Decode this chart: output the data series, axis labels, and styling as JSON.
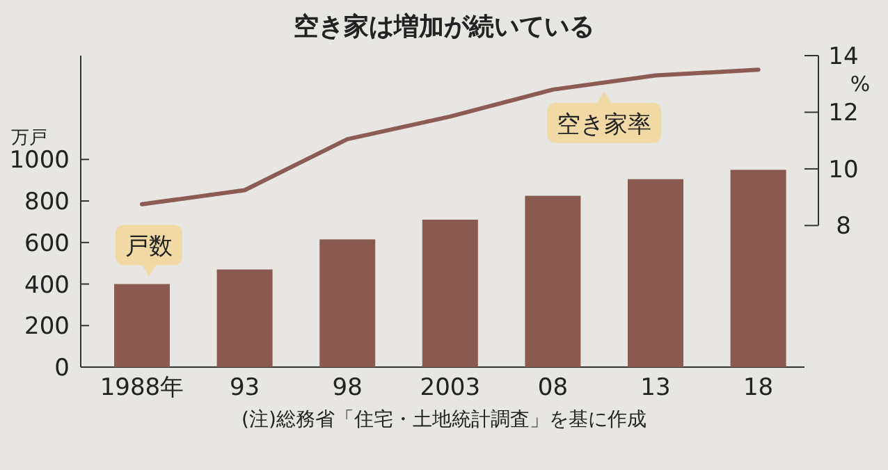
{
  "chart_data": {
    "type": "bar",
    "title": "空き家は増加が続いている",
    "ylabel": "万戸",
    "y2label": "%",
    "categories": [
      "1988年",
      "93",
      "98",
      "2003",
      "08",
      "13",
      "18"
    ],
    "series": [
      {
        "name": "戸数",
        "color": "#8a5a50",
        "values": [
          400,
          470,
          615,
          710,
          825,
          905,
          950
        ]
      },
      {
        "name": "空き家率",
        "type": "line",
        "axis": "y2",
        "color": "#8e5a54",
        "values": [
          8.75,
          9.25,
          11.05,
          11.85,
          12.8,
          13.3,
          13.5
        ]
      }
    ],
    "ylim": [
      0,
      1500
    ],
    "yticks": [
      0,
      200,
      400,
      600,
      800,
      1000
    ],
    "y2lim": [
      3,
      14
    ],
    "y2ticks": [
      8,
      10,
      12,
      14
    ],
    "annotations": [
      "(注)総務省「住宅・土地統計調査」を基に作成"
    ],
    "grid": false
  }
}
